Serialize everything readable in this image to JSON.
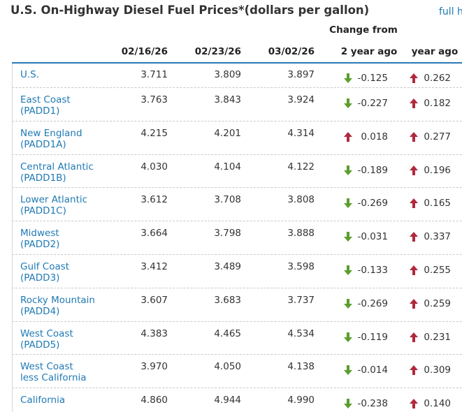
{
  "header": {
    "title": "U.S. On-Highway Diesel Fuel Prices*(dollars per gallon)",
    "link": "full h"
  },
  "table": {
    "group_header": "Change from",
    "columns": [
      "02/16/26",
      "02/23/26",
      "03/02/26",
      "2 year ago",
      "year ago"
    ],
    "rows": [
      {
        "name": [
          "U.S."
        ],
        "values": [
          "3.711",
          "3.809",
          "3.897",
          "-0.125",
          "0.262"
        ]
      },
      {
        "name": [
          "East Coast",
          "(PADD1)"
        ],
        "values": [
          "3.763",
          "3.843",
          "3.924",
          "-0.227",
          "0.182"
        ]
      },
      {
        "name": [
          "New England",
          "(PADD1A)"
        ],
        "values": [
          "4.215",
          "4.201",
          "4.314",
          "0.018",
          "0.277"
        ]
      },
      {
        "name": [
          "Central Atlantic",
          "(PADD1B)"
        ],
        "values": [
          "4.030",
          "4.104",
          "4.122",
          "-0.189",
          "0.196"
        ]
      },
      {
        "name": [
          "Lower Atlantic",
          "(PADD1C)"
        ],
        "values": [
          "3.612",
          "3.708",
          "3.808",
          "-0.269",
          "0.165"
        ]
      },
      {
        "name": [
          "Midwest",
          "(PADD2)"
        ],
        "values": [
          "3.664",
          "3.798",
          "3.888",
          "-0.031",
          "0.337"
        ]
      },
      {
        "name": [
          "Gulf Coast",
          "(PADD3)"
        ],
        "values": [
          "3.412",
          "3.489",
          "3.598",
          "-0.133",
          "0.255"
        ]
      },
      {
        "name": [
          "Rocky Mountain",
          "(PADD4)"
        ],
        "values": [
          "3.607",
          "3.683",
          "3.737",
          "-0.269",
          "0.259"
        ]
      },
      {
        "name": [
          "West Coast",
          "(PADD5)"
        ],
        "values": [
          "4.383",
          "4.465",
          "4.534",
          "-0.119",
          "0.231"
        ]
      },
      {
        "name": [
          "West Coast",
          "less California"
        ],
        "values": [
          "3.970",
          "4.050",
          "4.138",
          "-0.014",
          "0.309"
        ]
      },
      {
        "name": [
          "California"
        ],
        "values": [
          "4.860",
          "4.944",
          "4.990",
          "-0.238",
          "0.140"
        ]
      }
    ]
  }
}
